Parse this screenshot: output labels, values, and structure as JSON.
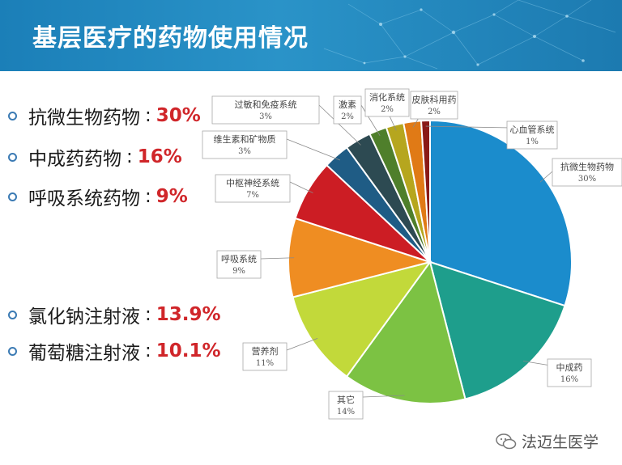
{
  "slide": {
    "title": "基层医疗的药物使用情况"
  },
  "bullets": [
    {
      "label": "抗微生物药物",
      "sep": ":",
      "value": "30%"
    },
    {
      "label": "中成药药物",
      "sep": ":",
      "value": "16%"
    },
    {
      "label": "呼吸系统药物",
      "sep": ":",
      "value": "9%"
    },
    {
      "label": "氯化钠注射液",
      "sep": ":",
      "value": "13.9%"
    },
    {
      "label": "葡萄糖注射液",
      "sep": ":",
      "value": "10.1%"
    }
  ],
  "watermark": {
    "text": "法迈生医学"
  },
  "colors": {
    "header": "#1b7fb8",
    "accent_red": "#d0262a"
  },
  "chart_data": {
    "type": "pie",
    "slices": [
      {
        "label": "抗微生物药物",
        "value": 30,
        "display": "30%",
        "color": "#1b8ccc"
      },
      {
        "label": "中成药",
        "value": 16,
        "display": "16%",
        "color": "#1e9e8c"
      },
      {
        "label": "其它",
        "value": 14,
        "display": "14%",
        "color": "#7cc243"
      },
      {
        "label": "营养剂",
        "value": 11,
        "display": "11%",
        "color": "#c2d93a"
      },
      {
        "label": "呼吸系统",
        "value": 9,
        "display": "9%",
        "color": "#ef8d22"
      },
      {
        "label": "中枢神经系统",
        "value": 7,
        "display": "7%",
        "color": "#cc1d24"
      },
      {
        "label": "维生素和矿物质",
        "value": 3,
        "display": "3%",
        "color": "#1f5c85"
      },
      {
        "label": "过敏和免疫系统",
        "value": 3,
        "display": "3%",
        "color": "#2d4a52"
      },
      {
        "label": "激素",
        "value": 2,
        "display": "2%",
        "color": "#4f7f2b"
      },
      {
        "label": "消化系统",
        "value": 2,
        "display": "2%",
        "color": "#b6a61e"
      },
      {
        "label": "皮肤科用药",
        "value": 2,
        "display": "2%",
        "color": "#e07a16"
      },
      {
        "label": "心血管系统",
        "value": 1,
        "display": "1%",
        "color": "#8a1a17"
      }
    ]
  }
}
